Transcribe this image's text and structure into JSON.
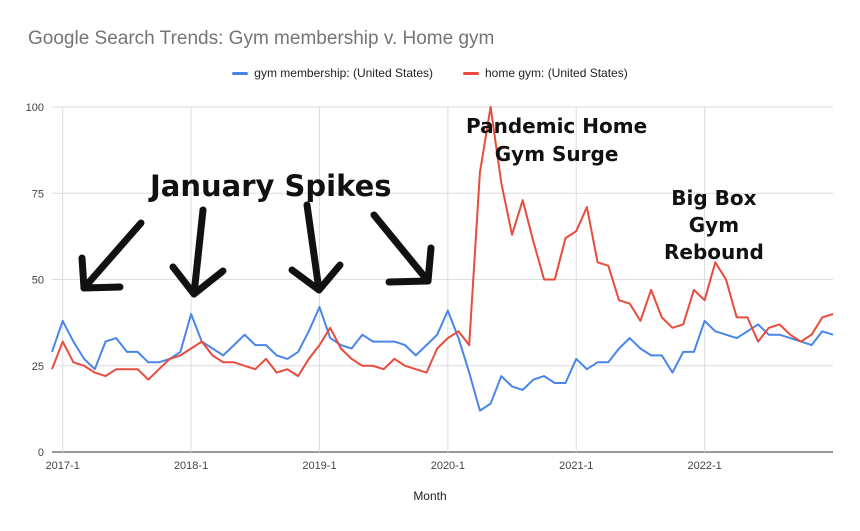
{
  "chart_data": {
    "type": "line",
    "title": "Google Search Trends: Gym membership v. Home gym",
    "xlabel": "Month",
    "ylabel": "",
    "ylim": [
      0,
      100
    ],
    "yticks": [
      "0",
      "25",
      "50",
      "75",
      "100"
    ],
    "xticks": [
      "2017-1",
      "2018-1",
      "2019-1",
      "2020-1",
      "2021-1",
      "2022-1"
    ],
    "x_start": "2016-12",
    "legend_position": "top",
    "grid": true,
    "series": [
      {
        "name": "gym membership: (United States)",
        "color": "#4a86e8",
        "values": [
          29,
          38,
          32,
          27,
          24,
          32,
          33,
          29,
          29,
          26,
          26,
          27,
          29,
          40,
          32,
          30,
          28,
          31,
          34,
          31,
          31,
          28,
          27,
          29,
          35,
          42,
          33,
          31,
          30,
          34,
          32,
          32,
          32,
          31,
          28,
          31,
          34,
          41,
          33,
          23,
          12,
          14,
          22,
          19,
          18,
          21,
          22,
          20,
          20,
          27,
          24,
          26,
          26,
          30,
          33,
          30,
          28,
          28,
          23,
          29,
          29,
          38,
          35,
          34,
          33,
          35,
          37,
          34,
          34,
          33,
          32,
          31,
          35,
          34
        ]
      },
      {
        "name": "home gym: (United States)",
        "color": "#e74c3c",
        "values": [
          24,
          32,
          26,
          25,
          23,
          22,
          24,
          24,
          24,
          21,
          24,
          27,
          28,
          30,
          32,
          28,
          26,
          26,
          25,
          24,
          27,
          23,
          24,
          22,
          27,
          31,
          36,
          30,
          27,
          25,
          25,
          24,
          27,
          25,
          24,
          23,
          30,
          33,
          35,
          31,
          81,
          100,
          78,
          63,
          73,
          61,
          50,
          50,
          62,
          64,
          71,
          55,
          54,
          44,
          43,
          38,
          47,
          39,
          36,
          37,
          47,
          44,
          55,
          50,
          39,
          39,
          32,
          36,
          37,
          34,
          32,
          34,
          39,
          40
        ]
      }
    ],
    "annotations": [
      {
        "lines": [
          "January Spikes"
        ]
      },
      {
        "lines": [
          "Pandemic Home",
          "Gym Surge"
        ]
      },
      {
        "lines": [
          "Big Box",
          "Gym",
          "Rebound"
        ]
      }
    ]
  }
}
